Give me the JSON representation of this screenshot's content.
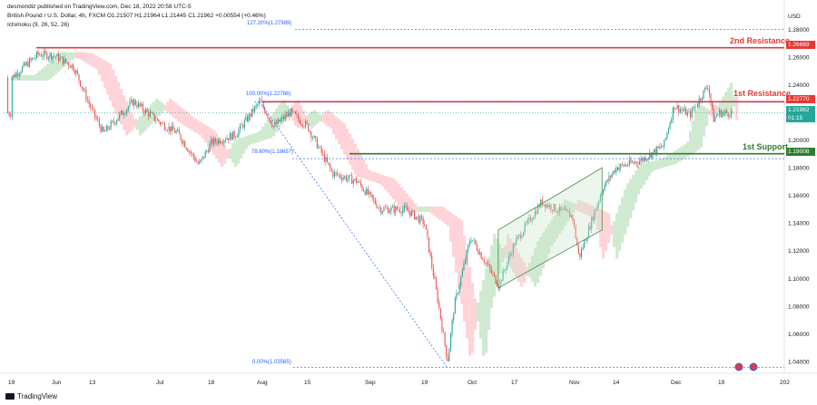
{
  "header": {
    "publisher": "desmondiz",
    "published_on": "published on TradingView.com, Dec 18, 2022 20:58 UTC-5",
    "symbol_line": "British Pound / U.S. Dollar, 4h, FXCM  O1.21507  H1.21964  L1.21445  C1.21962  +0.00554 (+0.46%)",
    "indicator": "Ichimoku (9, 26, 52, 26)"
  },
  "footer": {
    "brand": "TradingView"
  },
  "colors": {
    "up": "#26a69a",
    "down": "#ef5350",
    "resistance": "#e53935",
    "support": "#2e7d32",
    "fib": "#2962ff",
    "cloud_bull": "#c8e6c9",
    "cloud_bear": "#ffcdd2"
  },
  "chart_data": {
    "type": "candlestick",
    "pair": "GBP/USD",
    "currency": "USD",
    "timeframe": "4h",
    "y_axis": {
      "ticks": [
        "1.28000",
        "1.26000",
        "1.24000",
        "1.22000",
        "1.20000",
        "1.18000",
        "1.16000",
        "1.14000",
        "1.12000",
        "1.10000",
        "1.08000",
        "1.06000",
        "1.04000"
      ],
      "ylim": [
        1.035,
        1.285
      ]
    },
    "x_axis": {
      "ticks": [
        "19",
        "Jun",
        "13",
        "Jul",
        "18",
        "Aug",
        "15",
        "Sep",
        "19",
        "Oct",
        "17",
        "Nov",
        "14",
        "Dec",
        "19",
        "202"
      ]
    },
    "price_series": [
      {
        "x": "May 19",
        "close": 1.245
      },
      {
        "x": "May 27",
        "close": 1.262
      },
      {
        "x": "Jun 1",
        "close": 1.261
      },
      {
        "x": "Jun 7",
        "close": 1.253
      },
      {
        "x": "Jun 13",
        "close": 1.221
      },
      {
        "x": "Jun 16",
        "close": 1.205
      },
      {
        "x": "Jun 24",
        "close": 1.228
      },
      {
        "x": "Jul 1",
        "close": 1.213
      },
      {
        "x": "Jul 7",
        "close": 1.205
      },
      {
        "x": "Jul 14",
        "close": 1.182
      },
      {
        "x": "Jul 18",
        "close": 1.198
      },
      {
        "x": "Jul 25",
        "close": 1.204
      },
      {
        "x": "Aug 1",
        "close": 1.228
      },
      {
        "x": "Aug 5",
        "close": 1.21
      },
      {
        "x": "Aug 10",
        "close": 1.22
      },
      {
        "x": "Aug 15",
        "close": 1.21
      },
      {
        "x": "Aug 22",
        "close": 1.176
      },
      {
        "x": "Aug 29",
        "close": 1.17
      },
      {
        "x": "Sep 5",
        "close": 1.15
      },
      {
        "x": "Sep 13",
        "close": 1.15
      },
      {
        "x": "Sep 19",
        "close": 1.14
      },
      {
        "x": "Sep 23",
        "close": 1.085
      },
      {
        "x": "Sep 26",
        "close": 1.04
      },
      {
        "x": "Sep 28",
        "close": 1.08
      },
      {
        "x": "Oct 3",
        "close": 1.13
      },
      {
        "x": "Oct 12",
        "close": 1.095
      },
      {
        "x": "Oct 17",
        "close": 1.125
      },
      {
        "x": "Oct 24",
        "close": 1.155
      },
      {
        "x": "Nov 1",
        "close": 1.145
      },
      {
        "x": "Nov 3",
        "close": 1.115
      },
      {
        "x": "Nov 10",
        "close": 1.165
      },
      {
        "x": "Nov 14",
        "close": 1.18
      },
      {
        "x": "Nov 21",
        "close": 1.185
      },
      {
        "x": "Nov 28",
        "close": 1.196
      },
      {
        "x": "Dec 1",
        "close": 1.225
      },
      {
        "x": "Dec 7",
        "close": 1.218
      },
      {
        "x": "Dec 14",
        "close": 1.24
      },
      {
        "x": "Dec 16",
        "close": 1.215
      },
      {
        "x": "Dec 18",
        "close": 1.2196
      }
    ],
    "levels": [
      {
        "name": "2nd Resistance",
        "value": 1.26669,
        "label": "1.26669"
      },
      {
        "name": "1st Resistance",
        "value": 1.2277,
        "label": "1.22770"
      },
      {
        "name": "1st Support",
        "value": 1.19008,
        "label": "1.19008"
      }
    ],
    "current_price": {
      "value": 1.21962,
      "label": "1.21962",
      "countdown": "01:15"
    },
    "fibonacci": [
      {
        "label": "127.20%(1.27989)",
        "value": 1.27989
      },
      {
        "label": "100.00%(1.22766)",
        "value": 1.22766
      },
      {
        "label": "78.60%(1.18657)",
        "value": 1.18657
      },
      {
        "label": "0.00%(1.03565)",
        "value": 1.03565
      }
    ],
    "channel": {
      "lower": [
        [
          "Oct 12",
          1.093
        ],
        [
          "Nov 10",
          1.135
        ]
      ],
      "upper": [
        [
          "Oct 12",
          1.135
        ],
        [
          "Nov 10",
          1.18
        ]
      ]
    },
    "grid": false,
    "legend": "top-left"
  }
}
